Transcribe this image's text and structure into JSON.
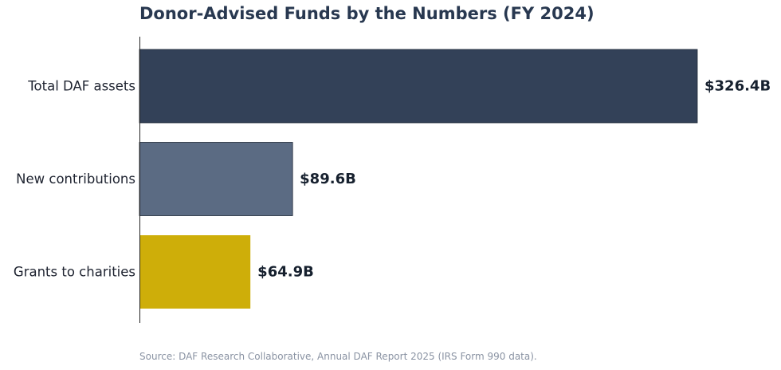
{
  "chart_data": {
    "type": "bar",
    "orientation": "horizontal",
    "title": "Donor-Advised Funds by the Numbers (FY 2024)",
    "categories": [
      "Total DAF assets",
      "New contributions",
      "Grants to charities"
    ],
    "values": [
      326.4,
      89.6,
      64.9
    ],
    "value_labels": [
      "$326.4B",
      "$89.6B",
      "$64.9B"
    ],
    "colors": [
      "#334158",
      "#5b6b83",
      "#ceae09"
    ],
    "xlabel": "",
    "ylabel": "",
    "xlim": [
      0,
      326.4
    ],
    "grid": false,
    "legend": "none"
  },
  "source_note": "Source: DAF Research Collaborative, Annual DAF Report 2025 (IRS Form 990 data)."
}
